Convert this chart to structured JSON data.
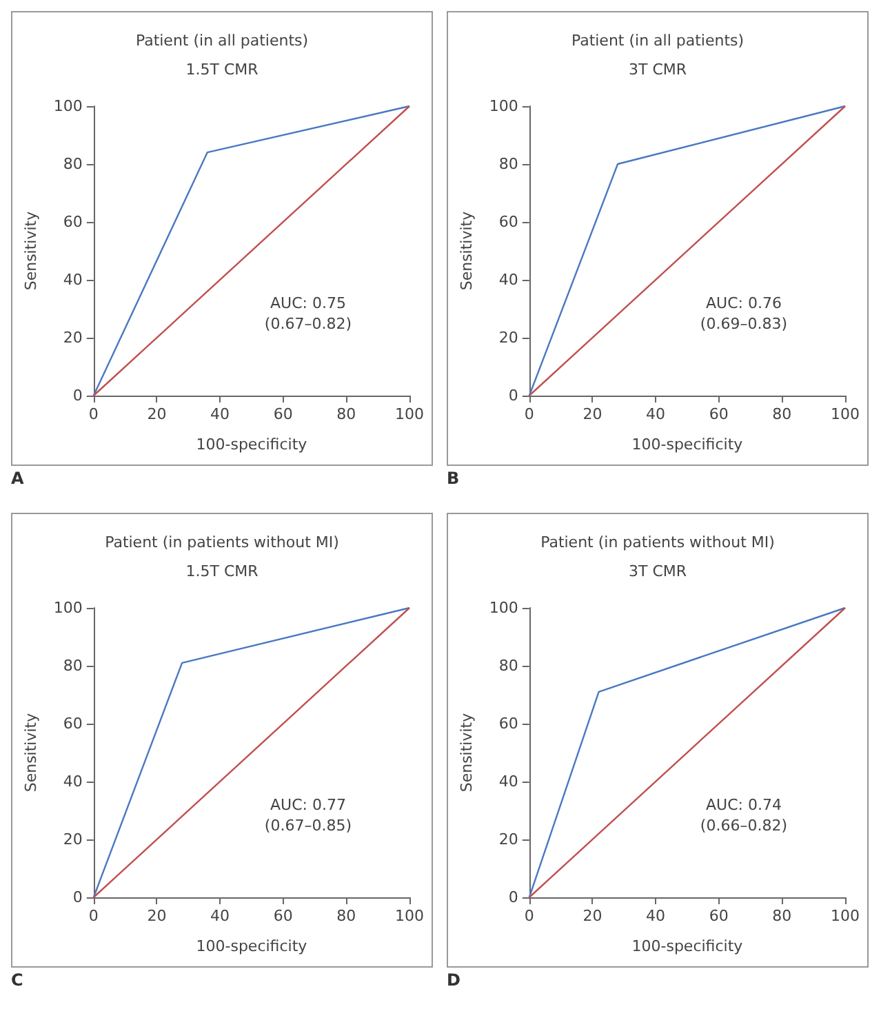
{
  "chart_data": [
    {
      "type": "line",
      "title": "Patient (in all patients)",
      "subtitle": "1.5T CMR",
      "xlabel": "100-specificity",
      "ylabel": "Sensitivity",
      "xlim": [
        0,
        100
      ],
      "ylim": [
        0,
        100
      ],
      "xticks": [
        0,
        20,
        40,
        60,
        80,
        100
      ],
      "yticks": [
        0,
        20,
        40,
        60,
        80,
        100
      ],
      "grid": false,
      "marker": "none",
      "line_style": "solid",
      "annotations": [
        "AUC: 0.75\n(0.67–0.82)",
        "A"
      ],
      "series": [
        {
          "color": "#4a78c2",
          "x": [
            0,
            36,
            100
          ],
          "values": [
            0,
            84,
            100
          ]
        },
        {
          "color": "#c0504d",
          "x": [
            0,
            100
          ],
          "values": [
            0,
            100
          ]
        }
      ]
    },
    {
      "type": "line",
      "title": "Patient (in all patients)",
      "subtitle": "3T CMR",
      "xlabel": "100-specificity",
      "ylabel": "Sensitivity",
      "xlim": [
        0,
        100
      ],
      "ylim": [
        0,
        100
      ],
      "xticks": [
        0,
        20,
        40,
        60,
        80,
        100
      ],
      "yticks": [
        0,
        20,
        40,
        60,
        80,
        100
      ],
      "grid": false,
      "marker": "none",
      "line_style": "solid",
      "annotations": [
        "AUC: 0.76\n(0.69–0.83)",
        "B"
      ],
      "series": [
        {
          "color": "#4a78c2",
          "x": [
            0,
            28,
            100
          ],
          "values": [
            0,
            80,
            100
          ]
        },
        {
          "color": "#c0504d",
          "x": [
            0,
            100
          ],
          "values": [
            0,
            100
          ]
        }
      ]
    },
    {
      "type": "line",
      "title": "Patient (in patients without MI)",
      "subtitle": "1.5T CMR",
      "xlabel": "100-specificity",
      "ylabel": "Sensitivity",
      "xlim": [
        0,
        100
      ],
      "ylim": [
        0,
        100
      ],
      "xticks": [
        0,
        20,
        40,
        60,
        80,
        100
      ],
      "yticks": [
        0,
        20,
        40,
        60,
        80,
        100
      ],
      "grid": false,
      "marker": "none",
      "line_style": "solid",
      "annotations": [
        "AUC: 0.77\n(0.67–0.85)",
        "C"
      ],
      "series": [
        {
          "color": "#4a78c2",
          "x": [
            0,
            28,
            100
          ],
          "values": [
            0,
            81,
            100
          ]
        },
        {
          "color": "#c0504d",
          "x": [
            0,
            100
          ],
          "values": [
            0,
            100
          ]
        }
      ]
    },
    {
      "type": "line",
      "title": "Patient (in patients without MI)",
      "subtitle": "3T CMR",
      "xlabel": "100-specificity",
      "ylabel": "Sensitivity",
      "xlim": [
        0,
        100
      ],
      "ylim": [
        0,
        100
      ],
      "xticks": [
        0,
        20,
        40,
        60,
        80,
        100
      ],
      "yticks": [
        0,
        20,
        40,
        60,
        80,
        100
      ],
      "grid": false,
      "marker": "none",
      "line_style": "solid",
      "annotations": [
        "AUC: 0.74\n(0.66–0.82)",
        "D"
      ],
      "series": [
        {
          "color": "#4a78c2",
          "x": [
            0,
            22,
            100
          ],
          "values": [
            0,
            71,
            100
          ]
        },
        {
          "color": "#c0504d",
          "x": [
            0,
            100
          ],
          "values": [
            0,
            100
          ]
        }
      ]
    }
  ]
}
